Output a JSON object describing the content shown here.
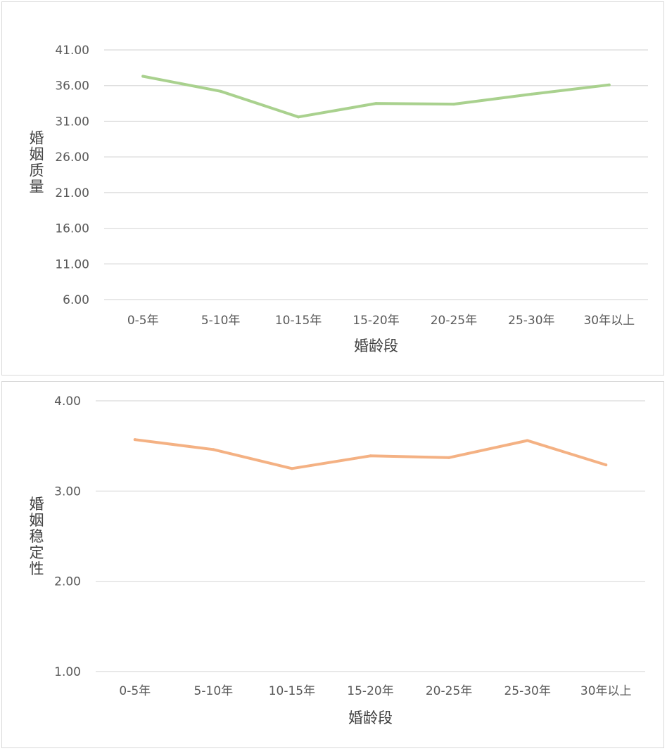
{
  "chart_data": [
    {
      "type": "line",
      "title": "",
      "xlabel": "婚龄段",
      "ylabel": "婚姻质量",
      "categories": [
        "0-5年",
        "5-10年",
        "10-15年",
        "15-20年",
        "20-25年",
        "25-30年",
        "30年以上"
      ],
      "y_ticks": [
        "6.00",
        "11.00",
        "16.00",
        "21.00",
        "26.00",
        "31.00",
        "36.00",
        "41.00"
      ],
      "ylim": [
        6,
        41
      ],
      "grid": true,
      "line_color": "#a9d18e",
      "series": [
        {
          "values": [
            37.3,
            35.2,
            31.6,
            33.5,
            33.4,
            34.8,
            36.1
          ]
        }
      ]
    },
    {
      "type": "line",
      "title": "",
      "xlabel": "婚龄段",
      "ylabel": "婚姻稳定性",
      "categories": [
        "0-5年",
        "5-10年",
        "10-15年",
        "15-20年",
        "20-25年",
        "25-30年",
        "30年以上"
      ],
      "y_ticks": [
        "1.00",
        "2.00",
        "3.00",
        "4.00"
      ],
      "ylim": [
        1,
        4
      ],
      "grid": true,
      "line_color": "#f4b183",
      "series": [
        {
          "values": [
            3.57,
            3.46,
            3.25,
            3.39,
            3.37,
            3.56,
            3.29
          ]
        }
      ]
    }
  ]
}
